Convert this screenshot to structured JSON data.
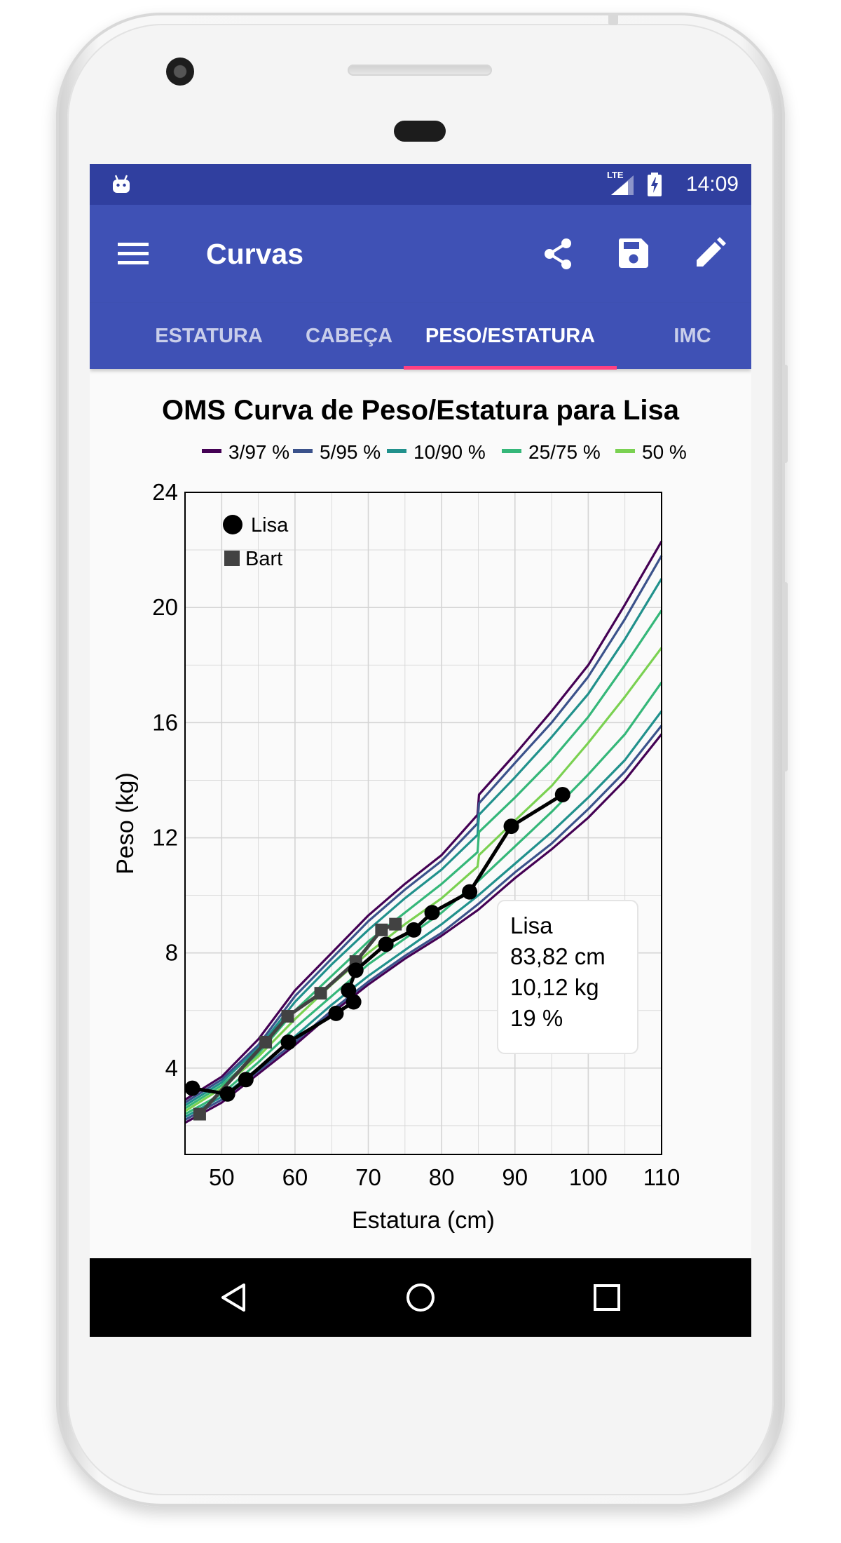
{
  "status_bar": {
    "time": "14:09",
    "network": "LTE"
  },
  "app_bar": {
    "title": "Curvas"
  },
  "tabs": [
    {
      "label": "ESTATURA",
      "active": false
    },
    {
      "label": "CABEÇA",
      "active": false
    },
    {
      "label": "PESO/ESTATURA",
      "active": true
    },
    {
      "label": "IMC",
      "active": false
    }
  ],
  "colors": {
    "status_bar": "#303f9f",
    "app_bar": "#3f51b5",
    "tab_indicator": "#ff4081"
  },
  "icons": [
    "android-icon",
    "signal-icon",
    "battery-icon",
    "menu-icon",
    "share-icon",
    "save-icon",
    "edit-icon",
    "back-icon",
    "home-icon",
    "recents-icon"
  ],
  "tooltip": {
    "name": "Lisa",
    "height": "83,82 cm",
    "weight": "10,12 kg",
    "percentile": "19 %"
  },
  "chart_data": {
    "type": "line",
    "title": "OMS Curva de Peso/Estatura para Lisa",
    "xlabel": "Estatura (cm)",
    "ylabel": "Peso (kg)",
    "xlim": [
      45,
      110
    ],
    "ylim": [
      1,
      24
    ],
    "x_ticks": [
      50,
      60,
      70,
      80,
      90,
      100,
      110
    ],
    "y_ticks": [
      4,
      8,
      12,
      16,
      20,
      24
    ],
    "grid": true,
    "percentile_legend_position": "top",
    "points_legend_position": "top-left",
    "percentile_curves": [
      {
        "name": "3/97 %",
        "color": "#440154",
        "lower": [
          [
            45,
            2.1
          ],
          [
            50,
            2.8
          ],
          [
            55,
            3.8
          ],
          [
            60,
            4.8
          ],
          [
            65,
            5.9
          ],
          [
            70,
            6.9
          ],
          [
            75,
            7.8
          ],
          [
            80,
            8.6
          ],
          [
            85,
            9.5
          ],
          [
            90,
            10.6
          ],
          [
            95,
            11.6
          ],
          [
            100,
            12.7
          ],
          [
            105,
            14.0
          ],
          [
            110,
            15.6
          ]
        ],
        "upper": [
          [
            45,
            2.9
          ],
          [
            50,
            3.7
          ],
          [
            55,
            5.0
          ],
          [
            60,
            6.7
          ],
          [
            65,
            8.0
          ],
          [
            70,
            9.3
          ],
          [
            75,
            10.4
          ],
          [
            80,
            11.4
          ],
          [
            84.9,
            12.8
          ],
          [
            85.1,
            13.5
          ],
          [
            90,
            14.9
          ],
          [
            95,
            16.4
          ],
          [
            100,
            18.0
          ],
          [
            105,
            20.1
          ],
          [
            110,
            22.3
          ]
        ]
      },
      {
        "name": "5/95 %",
        "color": "#3b528b",
        "lower": [
          [
            45,
            2.2
          ],
          [
            50,
            2.9
          ],
          [
            55,
            3.9
          ],
          [
            60,
            4.9
          ],
          [
            65,
            6.0
          ],
          [
            70,
            7.0
          ],
          [
            75,
            7.9
          ],
          [
            80,
            8.7
          ],
          [
            85,
            9.7
          ],
          [
            90,
            10.8
          ],
          [
            95,
            11.8
          ],
          [
            100,
            13.0
          ],
          [
            105,
            14.3
          ],
          [
            110,
            15.9
          ]
        ],
        "upper": [
          [
            45,
            2.8
          ],
          [
            50,
            3.6
          ],
          [
            55,
            4.8
          ],
          [
            60,
            6.5
          ],
          [
            65,
            7.8
          ],
          [
            70,
            9.1
          ],
          [
            75,
            10.2
          ],
          [
            80,
            11.2
          ],
          [
            84.9,
            12.5
          ],
          [
            85.1,
            13.2
          ],
          [
            90,
            14.6
          ],
          [
            95,
            16.0
          ],
          [
            100,
            17.6
          ],
          [
            105,
            19.6
          ],
          [
            110,
            21.8
          ]
        ]
      },
      {
        "name": "10/90 %",
        "color": "#21918c",
        "lower": [
          [
            45,
            2.3
          ],
          [
            50,
            3.0
          ],
          [
            55,
            4.0
          ],
          [
            60,
            5.1
          ],
          [
            65,
            6.2
          ],
          [
            70,
            7.2
          ],
          [
            75,
            8.1
          ],
          [
            80,
            9.0
          ],
          [
            85,
            10.0
          ],
          [
            90,
            11.1
          ],
          [
            95,
            12.2
          ],
          [
            100,
            13.4
          ],
          [
            105,
            14.7
          ],
          [
            110,
            16.4
          ]
        ],
        "upper": [
          [
            45,
            2.7
          ],
          [
            50,
            3.5
          ],
          [
            55,
            4.7
          ],
          [
            60,
            6.3
          ],
          [
            65,
            7.6
          ],
          [
            70,
            8.8
          ],
          [
            75,
            9.9
          ],
          [
            80,
            10.9
          ],
          [
            84.9,
            12.1
          ],
          [
            85.1,
            12.8
          ],
          [
            90,
            14.1
          ],
          [
            95,
            15.5
          ],
          [
            100,
            17.0
          ],
          [
            105,
            18.9
          ],
          [
            110,
            21.0
          ]
        ]
      },
      {
        "name": "25/75 %",
        "color": "#35b779",
        "lower": [
          [
            45,
            2.4
          ],
          [
            50,
            3.1
          ],
          [
            55,
            4.2
          ],
          [
            60,
            5.4
          ],
          [
            65,
            6.5
          ],
          [
            70,
            7.6
          ],
          [
            75,
            8.5
          ],
          [
            80,
            9.4
          ],
          [
            85,
            10.5
          ],
          [
            90,
            11.7
          ],
          [
            95,
            12.9
          ],
          [
            100,
            14.2
          ],
          [
            105,
            15.6
          ],
          [
            110,
            17.4
          ]
        ],
        "upper": [
          [
            45,
            2.6
          ],
          [
            50,
            3.4
          ],
          [
            55,
            4.5
          ],
          [
            60,
            6.0
          ],
          [
            65,
            7.2
          ],
          [
            70,
            8.4
          ],
          [
            75,
            9.4
          ],
          [
            80,
            10.4
          ],
          [
            84.9,
            11.5
          ],
          [
            85.1,
            12.2
          ],
          [
            90,
            13.4
          ],
          [
            95,
            14.7
          ],
          [
            100,
            16.2
          ],
          [
            105,
            18.0
          ],
          [
            110,
            19.9
          ]
        ]
      },
      {
        "name": "50 %",
        "color": "#7ad151",
        "values": [
          [
            45,
            2.5
          ],
          [
            50,
            3.3
          ],
          [
            55,
            4.4
          ],
          [
            60,
            5.7
          ],
          [
            65,
            6.9
          ],
          [
            70,
            8.0
          ],
          [
            75,
            9.0
          ],
          [
            80,
            9.9
          ],
          [
            84.9,
            11.0
          ],
          [
            85.1,
            11.4
          ],
          [
            90,
            12.6
          ],
          [
            95,
            13.8
          ],
          [
            100,
            15.3
          ],
          [
            105,
            16.9
          ],
          [
            110,
            18.6
          ]
        ]
      }
    ],
    "series": [
      {
        "name": "Lisa",
        "marker": "circle",
        "color": "#000000",
        "points": [
          [
            46,
            3.3
          ],
          [
            50.8,
            3.1
          ],
          [
            53.3,
            3.6
          ],
          [
            59.1,
            4.9
          ],
          [
            65.6,
            5.9
          ],
          [
            68,
            6.3
          ],
          [
            67.3,
            6.7
          ],
          [
            68.3,
            7.4
          ],
          [
            72.4,
            8.3
          ],
          [
            76.2,
            8.8
          ],
          [
            78.7,
            9.4
          ],
          [
            83.82,
            10.12
          ],
          [
            89.5,
            12.4
          ],
          [
            96.5,
            13.5
          ]
        ]
      },
      {
        "name": "Bart",
        "marker": "square",
        "color": "#424242",
        "points": [
          [
            47,
            2.4
          ],
          [
            56,
            4.9
          ],
          [
            59,
            5.8
          ],
          [
            63.5,
            6.6
          ],
          [
            68.3,
            7.7
          ],
          [
            71.8,
            8.8
          ],
          [
            73.7,
            9.0
          ]
        ]
      }
    ]
  }
}
